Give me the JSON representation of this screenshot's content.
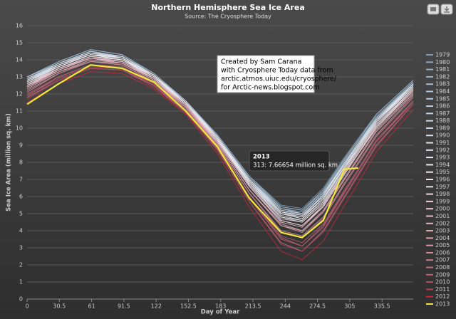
{
  "chart_data": {
    "type": "line",
    "title": "Northern Hemisphere Sea Ice Area",
    "subtitle": "Source: The Cryosphere Today",
    "x_label": "Day of Year",
    "y_label": "Sea Ice Area (million sq. km)",
    "annotation": [
      "Created by Sam Carana",
      "with Cryosphere Today data from",
      "arctic.atmos.uiuc.edu/cryosphere/",
      "for Arctic-news.blogspot.com"
    ],
    "tooltip": {
      "title": "2013",
      "text": "313: 7.66654 million sq. km"
    },
    "xlim": [
      0,
      365
    ],
    "xticks": [
      0,
      30.5,
      61,
      91.5,
      122,
      152.5,
      183,
      213.5,
      244,
      274.5,
      305,
      335.5
    ],
    "ylim": [
      0,
      16
    ],
    "yticks": [
      0,
      1,
      2,
      3,
      4,
      5,
      6,
      7,
      8,
      9,
      10,
      11,
      12,
      13,
      14,
      15,
      16
    ],
    "grid": true,
    "legend": "right",
    "x": [
      0,
      30,
      60,
      90,
      120,
      150,
      180,
      210,
      240,
      260,
      280,
      300,
      313,
      330,
      365
    ],
    "series": [
      {
        "name": "1979",
        "color": "#7f9fb8",
        "values": [
          13.0,
          13.9,
          14.6,
          14.3,
          13.2,
          11.6,
          9.6,
          7.2,
          5.5,
          5.3,
          6.5,
          8.3,
          9.4,
          10.8,
          12.8
        ]
      },
      {
        "name": "1980",
        "color": "#88a7bf",
        "values": [
          12.9,
          13.8,
          14.5,
          14.2,
          13.2,
          11.6,
          9.5,
          7.1,
          5.4,
          5.2,
          6.3,
          8.2,
          9.3,
          10.7,
          12.7
        ]
      },
      {
        "name": "1981",
        "color": "#92afc6",
        "values": [
          12.9,
          13.8,
          14.5,
          14.2,
          13.1,
          11.5,
          9.5,
          7.0,
          5.2,
          5.0,
          6.2,
          8.0,
          9.1,
          10.6,
          12.6
        ]
      },
      {
        "name": "1982",
        "color": "#9bb6cc",
        "values": [
          13.0,
          13.9,
          14.6,
          14.3,
          13.2,
          11.6,
          9.6,
          7.2,
          5.4,
          5.2,
          6.4,
          8.2,
          9.3,
          10.8,
          12.8
        ]
      },
      {
        "name": "1983",
        "color": "#a4bdd2",
        "values": [
          12.9,
          13.8,
          14.5,
          14.2,
          13.1,
          11.5,
          9.5,
          7.1,
          5.3,
          5.1,
          6.3,
          8.1,
          9.2,
          10.6,
          12.7
        ]
      },
      {
        "name": "1984",
        "color": "#adc4d7",
        "values": [
          12.8,
          13.7,
          14.4,
          14.1,
          13.1,
          11.5,
          9.4,
          6.9,
          5.1,
          4.9,
          6.0,
          7.9,
          9.0,
          10.5,
          12.5
        ]
      },
      {
        "name": "1985",
        "color": "#b5cadc",
        "values": [
          12.8,
          13.7,
          14.4,
          14.2,
          13.1,
          11.5,
          9.5,
          7.0,
          5.2,
          4.9,
          6.1,
          8.0,
          9.1,
          10.5,
          12.6
        ]
      },
      {
        "name": "1986",
        "color": "#bdd0e0",
        "values": [
          13.0,
          13.8,
          14.4,
          14.2,
          13.1,
          11.6,
          9.5,
          7.0,
          5.3,
          5.0,
          6.2,
          8.0,
          9.1,
          10.6,
          12.6
        ]
      },
      {
        "name": "1987",
        "color": "#c5d5e4",
        "values": [
          12.8,
          13.8,
          14.5,
          14.1,
          13.1,
          11.5,
          9.4,
          7.0,
          5.2,
          5.0,
          6.2,
          7.9,
          9.1,
          10.5,
          12.6
        ]
      },
      {
        "name": "1988",
        "color": "#ccdae7",
        "values": [
          12.8,
          13.7,
          14.4,
          14.1,
          13.0,
          11.5,
          9.4,
          6.9,
          5.1,
          4.9,
          6.0,
          7.9,
          9.0,
          10.5,
          12.5
        ]
      },
      {
        "name": "1989",
        "color": "#d3deea",
        "values": [
          12.7,
          13.6,
          14.3,
          14.1,
          13.0,
          11.4,
          9.4,
          6.8,
          5.0,
          4.7,
          5.9,
          7.7,
          8.9,
          10.4,
          12.5
        ]
      },
      {
        "name": "1990",
        "color": "#d9e2ec",
        "values": [
          12.6,
          13.5,
          14.2,
          14.0,
          13.0,
          11.4,
          9.3,
          6.7,
          4.7,
          4.5,
          5.6,
          7.5,
          8.7,
          10.2,
          12.3
        ]
      },
      {
        "name": "1991",
        "color": "#dfe5ee",
        "values": [
          12.7,
          13.6,
          14.3,
          14.1,
          13.0,
          11.4,
          9.4,
          6.8,
          4.9,
          4.6,
          5.8,
          7.7,
          8.8,
          10.3,
          12.4
        ]
      },
      {
        "name": "1992",
        "color": "#e4e8ef",
        "values": [
          12.9,
          13.7,
          14.3,
          14.2,
          13.1,
          11.5,
          9.5,
          7.0,
          5.1,
          4.8,
          6.1,
          7.9,
          9.0,
          10.4,
          12.6
        ]
      },
      {
        "name": "1993",
        "color": "#e8eaef",
        "values": [
          12.6,
          13.6,
          14.3,
          14.0,
          13.0,
          11.4,
          9.3,
          6.8,
          4.8,
          4.6,
          5.7,
          7.6,
          8.8,
          10.3,
          12.4
        ]
      },
      {
        "name": "1994",
        "color": "#ecebee",
        "values": [
          12.8,
          13.6,
          14.3,
          14.0,
          13.1,
          11.4,
          9.3,
          6.9,
          5.0,
          4.7,
          5.9,
          7.7,
          8.9,
          10.4,
          12.4
        ]
      },
      {
        "name": "1995",
        "color": "#eeeaec",
        "values": [
          12.5,
          13.4,
          14.1,
          13.9,
          12.9,
          11.3,
          9.2,
          6.6,
          4.6,
          4.3,
          5.4,
          7.3,
          8.5,
          10.0,
          12.2
        ]
      },
      {
        "name": "1996",
        "color": "#f0e6e9",
        "values": [
          12.7,
          13.7,
          14.4,
          14.1,
          13.0,
          11.5,
          9.4,
          6.9,
          5.0,
          4.8,
          5.9,
          7.8,
          8.9,
          10.4,
          12.5
        ]
      },
      {
        "name": "1997",
        "color": "#f0e0e5",
        "values": [
          12.6,
          13.5,
          14.2,
          14.0,
          12.9,
          11.4,
          9.3,
          6.7,
          4.8,
          4.5,
          5.6,
          7.5,
          8.7,
          10.2,
          12.3
        ]
      },
      {
        "name": "1998",
        "color": "#efd9df",
        "values": [
          12.5,
          13.5,
          14.2,
          14.0,
          12.9,
          11.3,
          9.2,
          6.6,
          4.6,
          4.3,
          5.5,
          7.4,
          8.6,
          10.1,
          12.3
        ]
      },
      {
        "name": "1999",
        "color": "#edd1d9",
        "values": [
          12.5,
          13.4,
          14.1,
          13.9,
          12.9,
          11.3,
          9.2,
          6.6,
          4.6,
          4.3,
          5.4,
          7.3,
          8.5,
          10.0,
          12.2
        ]
      },
      {
        "name": "2000",
        "color": "#ebc9d2",
        "values": [
          12.4,
          13.5,
          14.1,
          13.8,
          12.9,
          11.4,
          9.2,
          6.6,
          4.5,
          4.2,
          5.4,
          7.3,
          8.5,
          10.1,
          12.2
        ]
      },
      {
        "name": "2001",
        "color": "#e8c0ca",
        "values": [
          12.5,
          13.5,
          14.2,
          13.9,
          12.9,
          11.3,
          9.2,
          6.6,
          4.6,
          4.3,
          5.5,
          7.4,
          8.5,
          10.1,
          12.2
        ]
      },
      {
        "name": "2002",
        "color": "#e5b6c1",
        "values": [
          12.3,
          13.3,
          14.0,
          13.8,
          12.8,
          11.2,
          9.1,
          6.4,
          4.3,
          4.0,
          5.1,
          7.0,
          8.2,
          9.8,
          12.0
        ]
      },
      {
        "name": "2003",
        "color": "#e1abb8",
        "values": [
          12.4,
          13.4,
          14.1,
          13.8,
          12.8,
          11.3,
          9.1,
          6.4,
          4.4,
          4.0,
          5.2,
          7.1,
          8.3,
          9.9,
          12.1
        ]
      },
      {
        "name": "2004",
        "color": "#dda0ae",
        "values": [
          12.4,
          13.3,
          13.9,
          13.8,
          12.8,
          11.3,
          9.1,
          6.4,
          4.3,
          3.9,
          5.1,
          7.0,
          8.2,
          9.8,
          12.0
        ]
      },
      {
        "name": "2005",
        "color": "#d894a3",
        "values": [
          12.2,
          13.2,
          13.9,
          13.7,
          12.7,
          11.2,
          9.0,
          6.2,
          4.0,
          3.7,
          4.8,
          6.8,
          8.0,
          9.6,
          11.9
        ]
      },
      {
        "name": "2006",
        "color": "#d38898",
        "values": [
          12.1,
          13.2,
          13.9,
          13.7,
          12.7,
          11.1,
          9.0,
          6.2,
          3.9,
          3.6,
          4.7,
          6.7,
          7.9,
          9.5,
          11.8
        ]
      },
      {
        "name": "2007",
        "color": "#cd7b8c",
        "values": [
          11.8,
          12.8,
          13.5,
          13.4,
          12.5,
          10.9,
          8.7,
          5.7,
          3.3,
          2.8,
          4.0,
          6.0,
          7.3,
          9.0,
          11.4
        ]
      },
      {
        "name": "2008",
        "color": "#c76d7f",
        "values": [
          11.9,
          13.0,
          13.7,
          13.5,
          12.6,
          11.0,
          8.8,
          5.9,
          3.6,
          3.1,
          4.3,
          6.3,
          7.5,
          9.2,
          11.6
        ]
      },
      {
        "name": "2009",
        "color": "#c15f72",
        "values": [
          12.0,
          13.0,
          13.7,
          13.6,
          12.6,
          11.1,
          8.9,
          6.0,
          3.7,
          3.3,
          4.4,
          6.4,
          7.6,
          9.3,
          11.6
        ]
      },
      {
        "name": "2010",
        "color": "#ba5064",
        "values": [
          11.9,
          12.9,
          13.6,
          13.5,
          12.5,
          11.0,
          8.8,
          5.9,
          3.5,
          3.1,
          4.2,
          6.2,
          7.5,
          9.2,
          11.5
        ]
      },
      {
        "name": "2011",
        "color": "#b34156",
        "values": [
          11.7,
          12.8,
          13.5,
          13.4,
          12.4,
          10.9,
          8.7,
          5.7,
          3.2,
          2.8,
          3.9,
          5.9,
          7.2,
          8.9,
          11.4
        ]
      },
      {
        "name": "2012",
        "color": "#c8283c",
        "values": [
          11.5,
          12.6,
          13.3,
          13.2,
          12.3,
          10.8,
          8.5,
          5.4,
          2.8,
          2.3,
          3.4,
          5.5,
          6.8,
          8.6,
          11.1
        ]
      },
      {
        "name": "2013",
        "color": "#f3e63c",
        "values": [
          11.4,
          12.6,
          13.7,
          13.5,
          12.7,
          11.0,
          8.9,
          5.9,
          3.9,
          3.6,
          4.6,
          7.6,
          7.66654,
          null,
          null
        ]
      }
    ]
  }
}
